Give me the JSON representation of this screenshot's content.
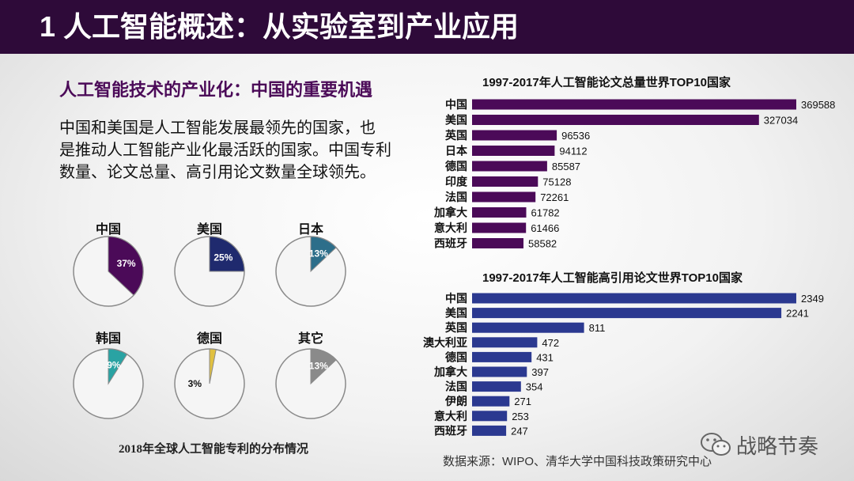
{
  "header": {
    "title": "1 人工智能概述：从实验室到产业应用"
  },
  "left": {
    "subtitle": "人工智能技术的产业化：中国的重要机遇",
    "body_lines": [
      "中国和美国是人工智能发展最领先的国家，也",
      "是推动人工智能产业化最活跃的国家。中国专利",
      "数量、论文总量、高引用论文数量全球领先。"
    ],
    "caption": "2018年全球人工智能专利的分布情况"
  },
  "colors": {
    "title_bg": "#2e0a39",
    "paper_bar": "#4b0a58",
    "cited_bar": "#2b3990",
    "pie_bg": "#f5f5f5",
    "pie_stroke": "#8a8a8a"
  },
  "chart_data": [
    {
      "type": "pie",
      "title": "2018年全球人工智能专利的分布情况",
      "slices": [
        {
          "label": "中国",
          "value": 37,
          "display": "37%",
          "color": "#4b0a58"
        },
        {
          "label": "美国",
          "value": 25,
          "display": "25%",
          "color": "#1f2a6e"
        },
        {
          "label": "日本",
          "value": 13,
          "display": "13%",
          "color": "#2d6e8a"
        },
        {
          "label": "韩国",
          "value": 9,
          "display": "9%",
          "color": "#2aa3a3"
        },
        {
          "label": "德国",
          "value": 3,
          "display": "3%",
          "color": "#e0c040"
        },
        {
          "label": "其它",
          "value": 13,
          "display": "13%",
          "color": "#8a8a8a"
        }
      ]
    },
    {
      "type": "bar",
      "title": "1997-2017年人工智能论文总量世界TOP10国家",
      "categories": [
        "中国",
        "美国",
        "英国",
        "日本",
        "德国",
        "印度",
        "法国",
        "加拿大",
        "意大利",
        "西班牙"
      ],
      "values": [
        369588,
        327034,
        96536,
        94112,
        85587,
        75128,
        72261,
        61782,
        61466,
        58582
      ],
      "value_labels": [
        "369588",
        "327034",
        "96536",
        "94112",
        "85587",
        "75128",
        "72261",
        "61782",
        "61466",
        "58582"
      ],
      "xlim": [
        0,
        369588
      ]
    },
    {
      "type": "bar",
      "title": "1997-2017年人工智能高引用论文世界TOP10国家",
      "categories": [
        "中国",
        "美国",
        "英国",
        "澳大利亚",
        "德国",
        "加拿大",
        "法国",
        "伊朗",
        "意大利",
        "西班牙"
      ],
      "values": [
        2349,
        2241,
        811,
        472,
        431,
        397,
        354,
        271,
        253,
        247
      ],
      "value_labels": [
        "2349",
        "2241",
        "811",
        "472",
        "431",
        "397",
        "354",
        "271",
        "253",
        "247"
      ],
      "xlim": [
        0,
        2349
      ]
    }
  ],
  "footer": {
    "source": "数据来源：WIPO、清华大学中国科技政策研究中心",
    "watermark": "战略节奏"
  }
}
